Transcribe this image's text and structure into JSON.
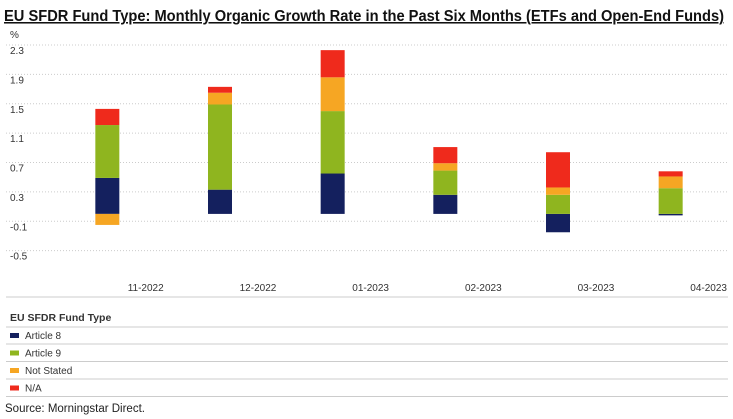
{
  "chart_data": {
    "type": "stacked_bar",
    "title": "EU SFDR Fund Type: Monthly Organic Growth Rate in the Past Six Months (ETFs and Open-End Funds)",
    "y_label": "%",
    "categories": [
      "11-2022",
      "12-2022",
      "01-2023",
      "02-2023",
      "03-2023",
      "04-2023"
    ],
    "series": [
      {
        "name": "Article 8",
        "color": "#14205e",
        "values": [
          0.49,
          0.33,
          0.55,
          0.26,
          -0.25,
          -0.02
        ]
      },
      {
        "name": "Article 9",
        "color": "#8fb51f",
        "values": [
          0.72,
          1.16,
          0.85,
          0.33,
          0.26,
          0.35
        ]
      },
      {
        "name": "Not Stated",
        "color": "#f6a623",
        "values": [
          -0.15,
          0.16,
          0.46,
          0.1,
          0.1,
          0.16
        ]
      },
      {
        "name": "N/A",
        "color": "#ef2a1c",
        "values": [
          0.22,
          0.08,
          0.37,
          0.22,
          0.48,
          0.07
        ]
      }
    ],
    "ylim": [
      -0.9,
      2.3
    ],
    "yticks": [
      2.3,
      1.9,
      1.5,
      1.1,
      0.7,
      0.3,
      -0.1,
      -0.5
    ],
    "grid": true,
    "legend_title": "EU SFDR Fund Type",
    "source": "Source: Morningstar Direct."
  }
}
